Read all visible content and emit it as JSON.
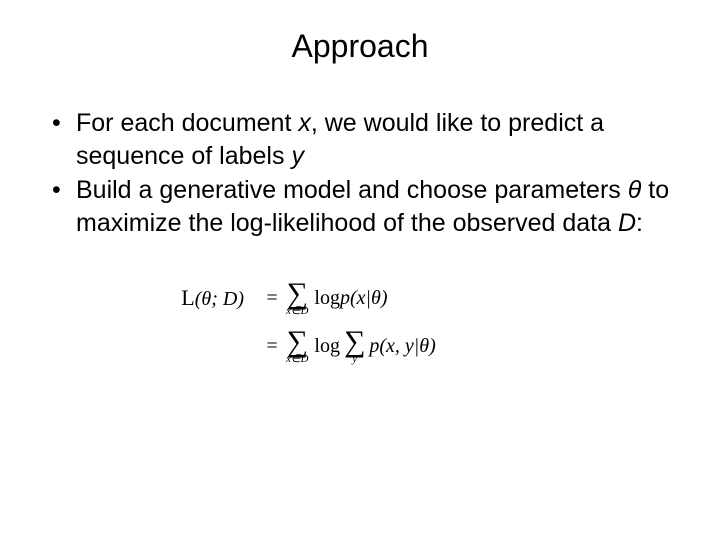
{
  "title": "Approach",
  "bullets": [
    {
      "pre": "For each document ",
      "var1": "x",
      "mid": ", we would like to predict a sequence of labels ",
      "var2": "y"
    },
    {
      "pre": "Build a generative model and choose parameters ",
      "var1": "θ",
      "mid": " to maximize the log-likelihood of the observed data ",
      "var2": "D",
      "post": ":"
    }
  ],
  "equation": {
    "lhs_script": "L",
    "lhs_paren": "(θ; D)",
    "eq_sign": "=",
    "row1": {
      "sum_sym": "∑",
      "sum_sub": "x∈D",
      "log": "log ",
      "p": "p(x|θ)"
    },
    "row2": {
      "sum_sym": "∑",
      "sum_sub_outer": "x∈D",
      "log": "log ",
      "sum_sub_inner": "y",
      "p": "p(x, y|θ)"
    }
  },
  "style": {
    "background": "#ffffff",
    "text_color": "#000000",
    "title_fontsize": 32,
    "body_fontsize": 25,
    "eq_fontsize": 20
  }
}
